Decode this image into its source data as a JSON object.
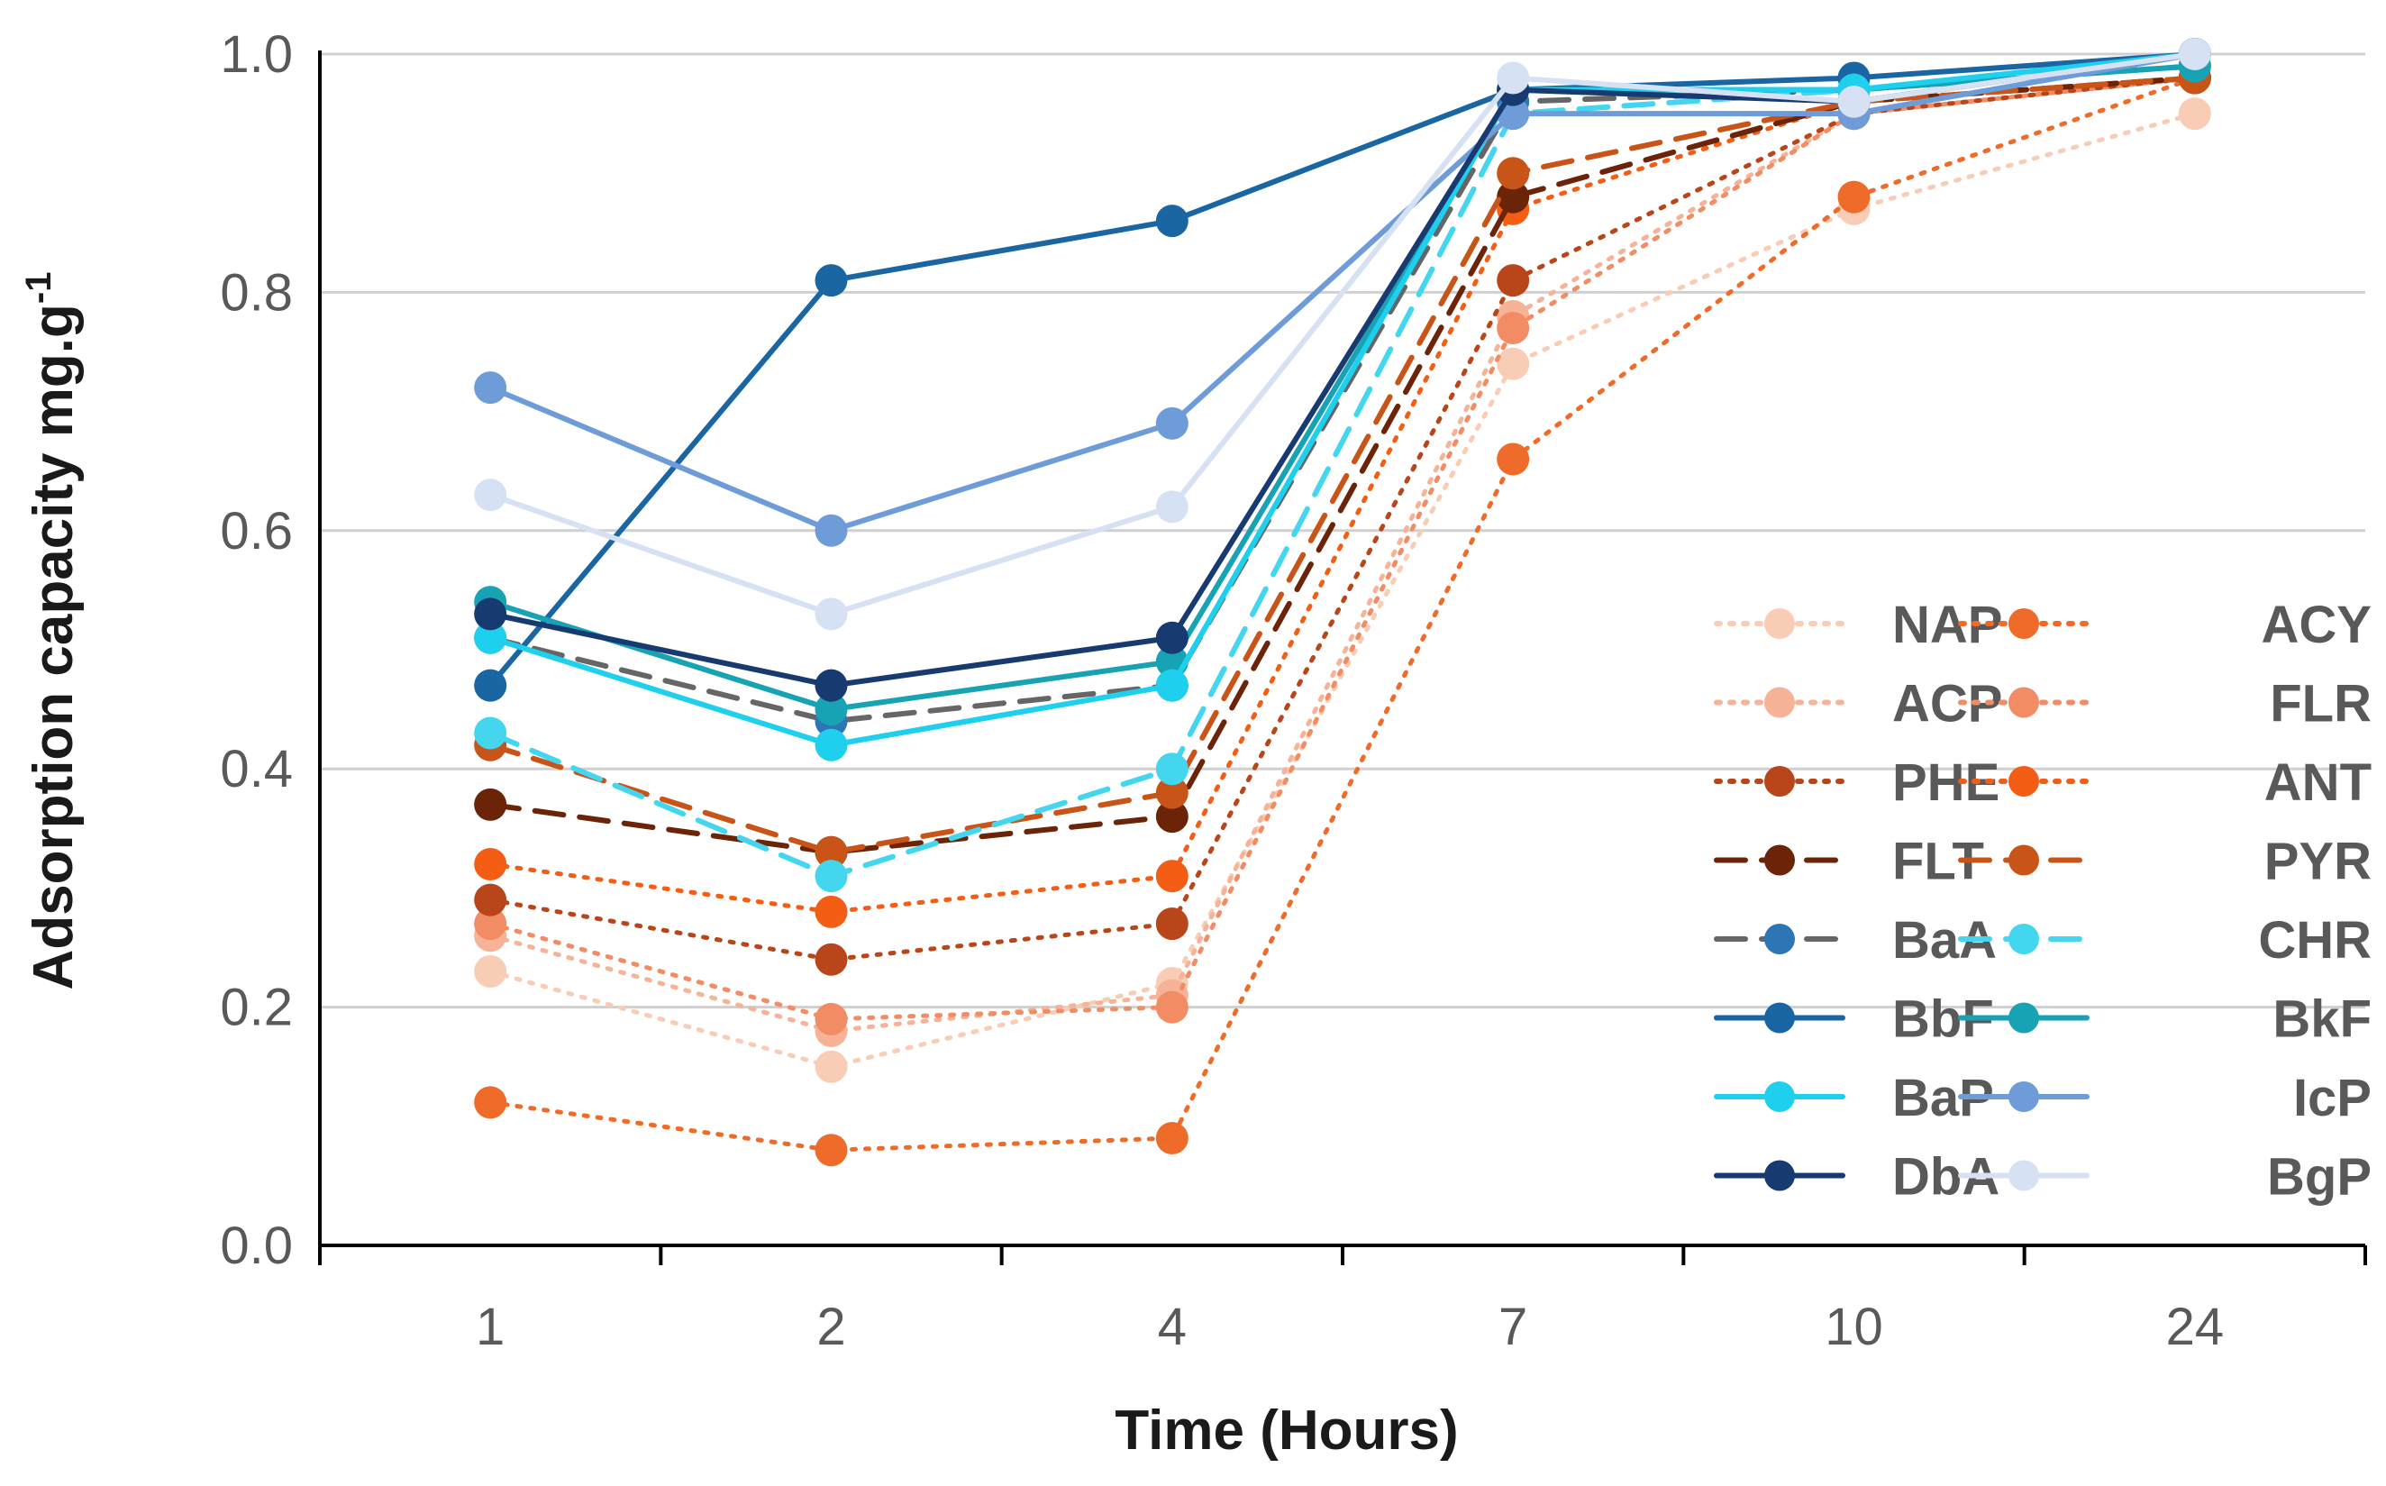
{
  "chart_data": {
    "type": "line",
    "title": "",
    "xlabel": "Time (Hours)",
    "ylabel": "Adsorption capacity mg.g",
    "ylabel_sup": "-1",
    "categories": [
      "1",
      "2",
      "4",
      "7",
      "10",
      "24"
    ],
    "ylim": [
      0,
      1.0
    ],
    "yticks": [
      "0.0",
      "0.2",
      "0.4",
      "0.6",
      "0.8",
      "1.0"
    ],
    "grid": true,
    "legend_position": "bottom-right",
    "series": [
      {
        "name": "NAP",
        "color": "#f9cdb5",
        "dash": "dotted",
        "values": [
          0.23,
          0.15,
          0.22,
          0.74,
          0.87,
          0.95
        ]
      },
      {
        "name": "ACY",
        "color": "#ef6b2a",
        "dash": "dotted",
        "values": [
          0.12,
          0.08,
          0.09,
          0.66,
          0.88,
          0.98
        ]
      },
      {
        "name": "ACP",
        "color": "#f6b398",
        "dash": "dotted",
        "values": [
          0.26,
          0.18,
          0.21,
          0.78,
          0.95,
          0.98
        ]
      },
      {
        "name": "FLR",
        "color": "#f28c64",
        "dash": "dotted",
        "values": [
          0.27,
          0.19,
          0.2,
          0.77,
          0.95,
          0.98
        ]
      },
      {
        "name": "PHE",
        "color": "#b8461a",
        "dash": "dotted",
        "values": [
          0.29,
          0.24,
          0.27,
          0.81,
          0.95,
          0.98
        ]
      },
      {
        "name": "ANT",
        "color": "#f45d14",
        "dash": "dotted",
        "values": [
          0.32,
          0.28,
          0.31,
          0.87,
          0.96,
          0.98
        ]
      },
      {
        "name": "FLT",
        "color": "#6b2408",
        "dash": "dashed",
        "values": [
          0.37,
          0.33,
          0.36,
          0.88,
          0.96,
          0.98
        ]
      },
      {
        "name": "PYR",
        "color": "#c85418",
        "dash": "dashed",
        "values": [
          0.42,
          0.33,
          0.38,
          0.9,
          0.96,
          0.98
        ]
      },
      {
        "name": "BaA",
        "color": "#666666",
        "marker_color": "#2e75b6",
        "dash": "dashed",
        "values": [
          0.51,
          0.44,
          0.47,
          0.96,
          0.97,
          0.99
        ]
      },
      {
        "name": "CHR",
        "color": "#44d6ee",
        "dash": "dashed",
        "values": [
          0.43,
          0.31,
          0.4,
          0.95,
          0.97,
          0.99
        ]
      },
      {
        "name": "BbF",
        "color": "#1a66a3",
        "dash": "solid",
        "values": [
          0.47,
          0.81,
          0.86,
          0.97,
          0.98,
          1.0
        ]
      },
      {
        "name": "BkF",
        "color": "#17a3b4",
        "dash": "solid",
        "values": [
          0.54,
          0.45,
          0.49,
          0.97,
          0.97,
          0.99
        ]
      },
      {
        "name": "BaP",
        "color": "#1fd0ee",
        "dash": "solid",
        "values": [
          0.51,
          0.42,
          0.47,
          0.97,
          0.97,
          1.0
        ]
      },
      {
        "name": "IcP",
        "color": "#6e9cd8",
        "dash": "solid",
        "values": [
          0.72,
          0.6,
          0.69,
          0.95,
          0.95,
          1.0
        ]
      },
      {
        "name": "DbA",
        "color": "#173a70",
        "dash": "solid",
        "values": [
          0.53,
          0.47,
          0.51,
          0.97,
          0.96,
          1.0
        ]
      },
      {
        "name": "BgP",
        "color": "#d6e2f3",
        "dash": "solid",
        "values": [
          0.63,
          0.53,
          0.62,
          0.98,
          0.96,
          1.0
        ]
      }
    ]
  }
}
